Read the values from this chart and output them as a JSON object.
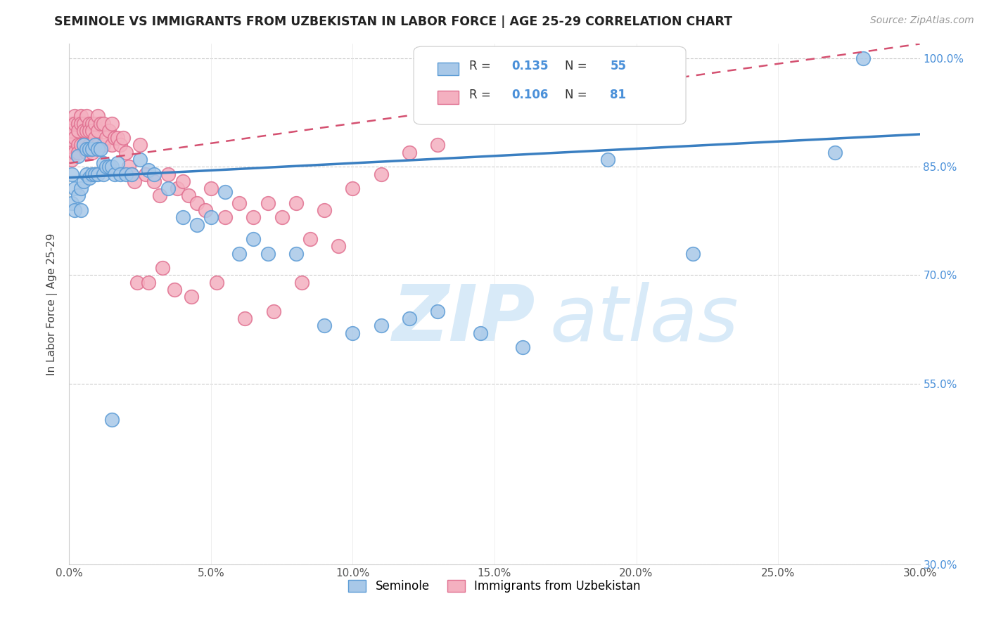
{
  "title": "SEMINOLE VS IMMIGRANTS FROM UZBEKISTAN IN LABOR FORCE | AGE 25-29 CORRELATION CHART",
  "source": "Source: ZipAtlas.com",
  "ylabel": "In Labor Force | Age 25-29",
  "xlim": [
    0.0,
    0.3
  ],
  "ylim": [
    0.3,
    1.02
  ],
  "xtick_positions": [
    0.0,
    0.05,
    0.1,
    0.15,
    0.2,
    0.25,
    0.3
  ],
  "xtick_labels": [
    "0.0%",
    "5.0%",
    "10.0%",
    "15.0%",
    "20.0%",
    "25.0%",
    "30.0%"
  ],
  "ytick_positions": [
    0.3,
    0.55,
    0.7,
    0.85,
    1.0
  ],
  "ytick_labels": [
    "30.0%",
    "55.0%",
    "70.0%",
    "85.0%",
    "100.0%"
  ],
  "seminole_color": "#a8c8e8",
  "uzbek_color": "#f4b0c0",
  "seminole_edge_color": "#5b9bd5",
  "uzbek_edge_color": "#e07090",
  "seminole_line_color": "#3a7fc1",
  "uzbek_line_color": "#d45070",
  "blue_line_x0": 0.0,
  "blue_line_y0": 0.835,
  "blue_line_x1": 0.3,
  "blue_line_y1": 0.895,
  "pink_line_x0": 0.0,
  "pink_line_y0": 0.855,
  "pink_line_x1": 0.3,
  "pink_line_y1": 1.02,
  "R_seminole": "0.135",
  "N_seminole": "55",
  "R_uzbek": "0.106",
  "N_uzbek": "81",
  "watermark_zip": "ZIP",
  "watermark_atlas": "atlas",
  "seminole_x": [
    0.001,
    0.001,
    0.002,
    0.002,
    0.003,
    0.003,
    0.004,
    0.004,
    0.005,
    0.005,
    0.006,
    0.006,
    0.007,
    0.007,
    0.008,
    0.008,
    0.009,
    0.009,
    0.01,
    0.01,
    0.011,
    0.012,
    0.012,
    0.013,
    0.014,
    0.015,
    0.016,
    0.017,
    0.018,
    0.02,
    0.022,
    0.025,
    0.028,
    0.03,
    0.035,
    0.04,
    0.045,
    0.05,
    0.055,
    0.06,
    0.065,
    0.07,
    0.08,
    0.09,
    0.1,
    0.11,
    0.12,
    0.13,
    0.145,
    0.16,
    0.19,
    0.22,
    0.27,
    0.28,
    0.015
  ],
  "seminole_y": [
    0.84,
    0.8,
    0.82,
    0.79,
    0.865,
    0.81,
    0.82,
    0.79,
    0.88,
    0.83,
    0.875,
    0.84,
    0.875,
    0.835,
    0.875,
    0.84,
    0.88,
    0.84,
    0.875,
    0.84,
    0.875,
    0.855,
    0.84,
    0.85,
    0.85,
    0.85,
    0.84,
    0.855,
    0.84,
    0.84,
    0.84,
    0.86,
    0.845,
    0.84,
    0.82,
    0.78,
    0.77,
    0.78,
    0.815,
    0.73,
    0.75,
    0.73,
    0.73,
    0.63,
    0.62,
    0.63,
    0.64,
    0.65,
    0.62,
    0.6,
    0.86,
    0.73,
    0.87,
    1.0,
    0.5
  ],
  "uzbek_x": [
    0.001,
    0.001,
    0.001,
    0.001,
    0.001,
    0.002,
    0.002,
    0.002,
    0.002,
    0.003,
    0.003,
    0.003,
    0.003,
    0.004,
    0.004,
    0.004,
    0.005,
    0.005,
    0.005,
    0.006,
    0.006,
    0.006,
    0.007,
    0.007,
    0.007,
    0.008,
    0.008,
    0.008,
    0.009,
    0.009,
    0.01,
    0.01,
    0.01,
    0.011,
    0.012,
    0.012,
    0.013,
    0.014,
    0.015,
    0.015,
    0.016,
    0.017,
    0.018,
    0.019,
    0.02,
    0.021,
    0.022,
    0.023,
    0.025,
    0.027,
    0.03,
    0.032,
    0.035,
    0.038,
    0.04,
    0.042,
    0.045,
    0.048,
    0.05,
    0.055,
    0.06,
    0.065,
    0.07,
    0.075,
    0.08,
    0.085,
    0.09,
    0.095,
    0.1,
    0.11,
    0.12,
    0.13,
    0.024,
    0.028,
    0.033,
    0.037,
    0.043,
    0.052,
    0.062,
    0.072,
    0.082
  ],
  "uzbek_y": [
    0.91,
    0.9,
    0.88,
    0.87,
    0.86,
    0.92,
    0.91,
    0.89,
    0.87,
    0.91,
    0.9,
    0.88,
    0.87,
    0.92,
    0.91,
    0.88,
    0.91,
    0.9,
    0.88,
    0.92,
    0.9,
    0.87,
    0.91,
    0.9,
    0.88,
    0.91,
    0.9,
    0.87,
    0.91,
    0.89,
    0.92,
    0.9,
    0.88,
    0.91,
    0.91,
    0.88,
    0.89,
    0.9,
    0.91,
    0.88,
    0.89,
    0.89,
    0.88,
    0.89,
    0.87,
    0.85,
    0.84,
    0.83,
    0.88,
    0.84,
    0.83,
    0.81,
    0.84,
    0.82,
    0.83,
    0.81,
    0.8,
    0.79,
    0.82,
    0.78,
    0.8,
    0.78,
    0.8,
    0.78,
    0.8,
    0.75,
    0.79,
    0.74,
    0.82,
    0.84,
    0.87,
    0.88,
    0.69,
    0.69,
    0.71,
    0.68,
    0.67,
    0.69,
    0.64,
    0.65,
    0.69
  ]
}
